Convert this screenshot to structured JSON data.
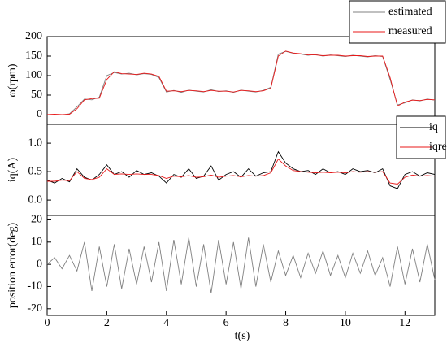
{
  "chart_data": {
    "type": "line",
    "x": [
      0,
      0.25,
      0.5,
      0.75,
      1,
      1.25,
      1.5,
      1.75,
      2,
      2.25,
      2.5,
      2.75,
      3,
      3.25,
      3.5,
      3.75,
      4,
      4.25,
      4.5,
      4.75,
      5,
      5.25,
      5.5,
      5.75,
      6,
      6.25,
      6.5,
      6.75,
      7,
      7.25,
      7.5,
      7.75,
      8,
      8.25,
      8.5,
      8.75,
      9,
      9.25,
      9.5,
      9.75,
      10,
      10.25,
      10.5,
      10.75,
      11,
      11.25,
      11.5,
      11.75,
      12,
      12.25,
      12.5,
      12.75,
      13
    ],
    "xlim": [
      0,
      13
    ],
    "xticks": [
      0,
      2,
      4,
      6,
      8,
      10,
      12
    ],
    "xlabel": "t(s)",
    "panels": [
      {
        "ylabel": "ω(rpm)",
        "ylim": [
          -25,
          200
        ],
        "yticks": [
          0,
          50,
          100,
          150,
          200
        ],
        "legend": "upper right",
        "series": [
          {
            "name": "estimated",
            "color": "#808080",
            "values": [
              0,
              0,
              -1,
              2,
              20,
              40,
              38,
              45,
              100,
              108,
              104,
              106,
              102,
              105,
              103,
              95,
              58,
              62,
              57,
              63,
              60,
              58,
              64,
              59,
              61,
              57,
              63,
              60,
              58,
              62,
              70,
              155,
              162,
              157,
              155,
              152,
              154,
              150,
              153,
              151,
              149,
              152,
              150,
              148,
              151,
              149,
              90,
              25,
              30,
              38,
              35,
              40,
              37
            ]
          },
          {
            "name": "measured",
            "color": "#e8191a",
            "values": [
              0,
              1,
              0,
              1,
              15,
              38,
              41,
              42,
              90,
              110,
              105,
              104,
              103,
              106,
              104,
              98,
              60,
              61,
              59,
              62,
              61,
              59,
              62,
              60,
              60,
              58,
              62,
              61,
              59,
              61,
              68,
              150,
              163,
              158,
              156,
              153,
              153,
              151,
              152,
              152,
              150,
              151,
              151,
              149,
              150,
              150,
              95,
              22,
              32,
              37,
              36,
              39,
              38
            ]
          }
        ]
      },
      {
        "ylabel": "iq(A)",
        "ylim": [
          -0.27,
          1.33
        ],
        "yticks": [
          {
            "value": 0,
            "label": "0.0"
          },
          0.5,
          {
            "value": 1,
            "label": "1.0"
          }
        ],
        "legend": "upper right",
        "series": [
          {
            "name": "iq",
            "color": "#000000",
            "values": [
              0.35,
              0.3,
              0.38,
              0.32,
              0.55,
              0.4,
              0.35,
              0.45,
              0.62,
              0.45,
              0.5,
              0.4,
              0.52,
              0.45,
              0.48,
              0.42,
              0.3,
              0.45,
              0.4,
              0.55,
              0.38,
              0.42,
              0.6,
              0.35,
              0.45,
              0.5,
              0.4,
              0.55,
              0.42,
              0.48,
              0.5,
              0.85,
              0.65,
              0.55,
              0.5,
              0.52,
              0.45,
              0.55,
              0.48,
              0.5,
              0.45,
              0.55,
              0.5,
              0.52,
              0.48,
              0.55,
              0.25,
              0.2,
              0.45,
              0.5,
              0.42,
              0.48,
              0.45
            ]
          },
          {
            "name": "iqref",
            "color": "#e8191a",
            "values": [
              0.33,
              0.33,
              0.35,
              0.34,
              0.5,
              0.38,
              0.36,
              0.4,
              0.55,
              0.45,
              0.46,
              0.45,
              0.46,
              0.45,
              0.45,
              0.43,
              0.38,
              0.42,
              0.41,
              0.43,
              0.4,
              0.41,
              0.44,
              0.4,
              0.42,
              0.43,
              0.41,
              0.43,
              0.42,
              0.43,
              0.48,
              0.72,
              0.6,
              0.52,
              0.5,
              0.49,
              0.48,
              0.49,
              0.48,
              0.49,
              0.48,
              0.5,
              0.49,
              0.5,
              0.49,
              0.5,
              0.3,
              0.28,
              0.4,
              0.44,
              0.42,
              0.43,
              0.42
            ]
          }
        ]
      },
      {
        "ylabel": "position error(deg)",
        "ylim": [
          -23,
          22
        ],
        "yticks": [
          -20,
          -10,
          0,
          10,
          20
        ],
        "series": [
          {
            "color": "#808080",
            "values": [
              0,
              3,
              -2,
              4,
              -3,
              10,
              -12,
              8,
              -10,
              9,
              -11,
              7,
              -9,
              8,
              -8,
              10,
              -12,
              11,
              -9,
              12,
              -10,
              9,
              -13,
              11,
              -9,
              10,
              -11,
              12,
              -10,
              9,
              -8,
              6,
              -5,
              4,
              -6,
              5,
              -4,
              6,
              -5,
              4,
              -6,
              5,
              -4,
              6,
              -5,
              3,
              -10,
              8,
              -9,
              7,
              -8,
              9,
              -7
            ]
          }
        ]
      }
    ]
  }
}
